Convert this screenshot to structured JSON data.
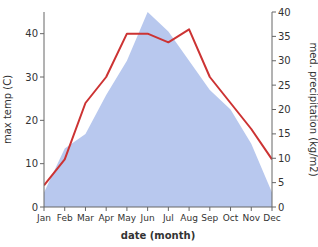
{
  "chart_data": {
    "type": "line",
    "xlabel": "date (month)",
    "ylabel": "max temp (C)",
    "y2label": "med. precipitation (kg/m2)",
    "categories": [
      "Jan",
      "Feb",
      "Mar",
      "Apr",
      "May",
      "Jun",
      "Jul",
      "Aug",
      "Sep",
      "Oct",
      "Nov",
      "Dec"
    ],
    "series": [
      {
        "type": "area",
        "axis": "y2",
        "color": "#b8c8ee",
        "values": [
          3,
          12,
          15,
          23,
          30,
          40,
          36,
          30,
          24,
          20,
          13,
          3
        ]
      },
      {
        "type": "line",
        "color": "#cc3333",
        "values": [
          5,
          11,
          24,
          30,
          40,
          40,
          38,
          41,
          30,
          24,
          18,
          11
        ]
      }
    ],
    "ylim": [
      0,
      45
    ],
    "yticks": [
      0,
      10,
      20,
      30,
      40
    ],
    "y2lim": [
      0,
      40
    ],
    "y2ticks": [
      0,
      5,
      10,
      15,
      20,
      25,
      30,
      35,
      40
    ],
    "grid": false
  }
}
